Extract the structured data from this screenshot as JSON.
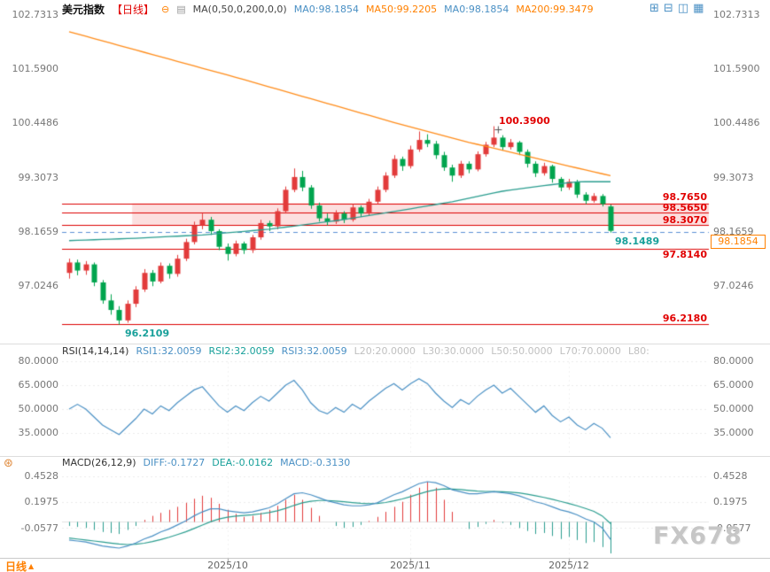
{
  "colors": {
    "up": "#e23b3b",
    "down": "#00a44e",
    "ma50": "#2a9d8f",
    "ma200": "#ff8c1a",
    "level_line": "#dd0000",
    "band_fill": "rgba(240,110,110,0.22)",
    "dashed_line": "#5b8fd4",
    "rsi_line": "#4a90c4",
    "diff_line": "#4a90c4",
    "dea_line": "#2a9d8f",
    "hist_pos": "#e23b3b",
    "hist_neg": "#2a9d8f",
    "accent_orange": "#ff8000",
    "accent_blue": "#4a90c4",
    "accent_red": "#e10000",
    "accent_teal": "#18a09a",
    "axis_text": "#777777",
    "muted_text": "#c0c0c0"
  },
  "header": {
    "title": "美元指数",
    "period": "【日线】",
    "ma_settings": "MA(0,50,0,200,0,0)",
    "ma_values": [
      "MA0:98.1854",
      "MA50:99.2205",
      "MA0:98.1854",
      "MA200:99.3479"
    ]
  },
  "icons": {
    "collapse": "⊖",
    "settings": "▤",
    "indicator": "⊛",
    "chevron_up": "▲"
  },
  "toolbar": {
    "icons": [
      {
        "name": "layout-single",
        "glyph": "⊞"
      },
      {
        "name": "layout-split-2",
        "glyph": "⊟"
      },
      {
        "name": "layout-split-vertical",
        "glyph": "◫"
      },
      {
        "name": "layout-grid",
        "glyph": "▦"
      }
    ]
  },
  "axis": {
    "main_ticks": [
      "102.7313",
      "101.5900",
      "100.4486",
      "99.3073",
      "98.1659",
      "97.0246"
    ],
    "rsi_ticks": [
      "80.0000",
      "65.0000",
      "50.0000",
      "35.0000"
    ],
    "macd_ticks": [
      "0.4528",
      "0.1975",
      "-0.0577"
    ],
    "x_labels": [
      "2025/10",
      "2025/11",
      "2025/12"
    ]
  },
  "levels": {
    "labels": [
      "98.7650",
      "98.5650",
      "98.3070",
      "97.8140",
      "96.2180"
    ]
  },
  "badges": {
    "current_price": "98.1854"
  },
  "annotations": {
    "high": "100.3900",
    "low": "96.2109",
    "last_low": "98.1489"
  },
  "rsi_header": {
    "title": "RSI(14,14,14)",
    "rsi1": "RSI1:32.0059",
    "rsi2": "RSI2:32.0059",
    "rsi3": "RSI3:32.0059",
    "l20": "L20:20.0000",
    "l30": "L30:30.0000",
    "l50": "L50:50.0000",
    "l70": "L70:70.0000",
    "l80": "L80:"
  },
  "macd_header": {
    "title": "MACD(26,12,9)",
    "diff": "DIFF:-0.1727",
    "dea": "DEA:-0.0162",
    "macd": "MACD:-0.3130"
  },
  "footer": {
    "period_button": "日线"
  },
  "watermark": "FX678",
  "chart_data": {
    "type": "candlestick",
    "title": "美元指数 日线",
    "x_month_ticks": [
      {
        "label": "2025/10",
        "index": 19
      },
      {
        "label": "2025/11",
        "index": 41
      },
      {
        "label": "2025/12",
        "index": 60
      }
    ],
    "main": {
      "y_ticks": [
        102.7313,
        101.59,
        100.4486,
        99.3073,
        98.1659,
        97.0246
      ],
      "ylim": [
        95.85,
        102.86
      ],
      "candles": [
        [
          97.3,
          97.6,
          97.18,
          97.52
        ],
        [
          97.52,
          97.58,
          97.25,
          97.35
        ],
        [
          97.35,
          97.55,
          97.26,
          97.48
        ],
        [
          97.48,
          97.52,
          97.02,
          97.1
        ],
        [
          97.1,
          97.15,
          96.65,
          96.72
        ],
        [
          96.72,
          96.85,
          96.42,
          96.52
        ],
        [
          96.52,
          96.6,
          96.211,
          96.3
        ],
        [
          96.3,
          96.72,
          96.25,
          96.65
        ],
        [
          96.65,
          97.02,
          96.58,
          96.95
        ],
        [
          96.95,
          97.38,
          96.9,
          97.3
        ],
        [
          97.3,
          97.36,
          97.02,
          97.12
        ],
        [
          97.12,
          97.52,
          97.08,
          97.45
        ],
        [
          97.45,
          97.5,
          97.18,
          97.28
        ],
        [
          97.28,
          97.68,
          97.22,
          97.6
        ],
        [
          97.6,
          98.02,
          97.55,
          97.95
        ],
        [
          97.95,
          98.38,
          97.9,
          98.3
        ],
        [
          98.3,
          98.55,
          98.22,
          98.42
        ],
        [
          98.42,
          98.48,
          98.1,
          98.18
        ],
        [
          98.18,
          98.22,
          97.78,
          97.85
        ],
        [
          97.85,
          97.92,
          97.56,
          97.7
        ],
        [
          97.7,
          97.98,
          97.65,
          97.92
        ],
        [
          97.92,
          97.96,
          97.7,
          97.78
        ],
        [
          97.78,
          98.1,
          97.72,
          98.05
        ],
        [
          98.05,
          98.42,
          98.0,
          98.35
        ],
        [
          98.35,
          98.4,
          98.18,
          98.28
        ],
        [
          98.28,
          98.66,
          98.22,
          98.6
        ],
        [
          98.6,
          99.12,
          98.55,
          99.05
        ],
        [
          99.05,
          99.5,
          99.0,
          99.32
        ],
        [
          99.32,
          99.45,
          99.02,
          99.1
        ],
        [
          99.1,
          99.15,
          98.65,
          98.72
        ],
        [
          98.72,
          98.78,
          98.38,
          98.45
        ],
        [
          98.45,
          98.55,
          98.3,
          98.38
        ],
        [
          98.38,
          98.62,
          98.33,
          98.55
        ],
        [
          98.55,
          98.6,
          98.35,
          98.42
        ],
        [
          98.42,
          98.75,
          98.38,
          98.68
        ],
        [
          98.68,
          98.72,
          98.48,
          98.55
        ],
        [
          98.55,
          98.86,
          98.5,
          98.8
        ],
        [
          98.8,
          99.12,
          98.75,
          99.05
        ],
        [
          99.05,
          99.42,
          99.0,
          99.35
        ],
        [
          99.35,
          99.78,
          99.3,
          99.7
        ],
        [
          99.7,
          99.75,
          99.45,
          99.55
        ],
        [
          99.55,
          99.98,
          99.5,
          99.9
        ],
        [
          99.9,
          100.28,
          99.85,
          100.1
        ],
        [
          100.1,
          100.22,
          99.95,
          100.02
        ],
        [
          100.02,
          100.08,
          99.7,
          99.78
        ],
        [
          99.78,
          99.85,
          99.45,
          99.52
        ],
        [
          99.52,
          99.58,
          99.22,
          99.35
        ],
        [
          99.35,
          99.66,
          99.3,
          99.6
        ],
        [
          99.6,
          99.65,
          99.4,
          99.48
        ],
        [
          99.48,
          99.86,
          99.44,
          99.8
        ],
        [
          99.8,
          100.06,
          99.75,
          100.0
        ],
        [
          100.0,
          100.39,
          99.95,
          100.15
        ],
        [
          100.15,
          100.2,
          99.88,
          99.95
        ],
        [
          99.95,
          100.12,
          99.9,
          100.05
        ],
        [
          100.05,
          100.08,
          99.78,
          99.85
        ],
        [
          99.85,
          99.9,
          99.52,
          99.6
        ],
        [
          99.6,
          99.65,
          99.32,
          99.4
        ],
        [
          99.4,
          99.62,
          99.35,
          99.55
        ],
        [
          99.55,
          99.58,
          99.2,
          99.28
        ],
        [
          99.28,
          99.32,
          99.02,
          99.1
        ],
        [
          99.1,
          99.28,
          99.05,
          99.22
        ],
        [
          99.22,
          99.26,
          98.88,
          98.95
        ],
        [
          98.95,
          99.0,
          98.75,
          98.82
        ],
        [
          98.82,
          98.98,
          98.78,
          98.92
        ],
        [
          98.92,
          98.96,
          98.7,
          98.75
        ],
        [
          98.7,
          98.74,
          98.1489,
          98.1854
        ]
      ],
      "ma50_points": [
        [
          0,
          97.98
        ],
        [
          8,
          98.03
        ],
        [
          16,
          98.1
        ],
        [
          24,
          98.22
        ],
        [
          32,
          98.4
        ],
        [
          40,
          98.62
        ],
        [
          46,
          98.8
        ],
        [
          52,
          99.02
        ],
        [
          57,
          99.14
        ],
        [
          61,
          99.22
        ],
        [
          65,
          99.2205
        ]
      ],
      "ma200_points": [
        [
          0,
          102.38
        ],
        [
          10,
          101.9
        ],
        [
          20,
          101.42
        ],
        [
          30,
          100.92
        ],
        [
          40,
          100.42
        ],
        [
          48,
          100.05
        ],
        [
          55,
          99.76
        ],
        [
          60,
          99.55
        ],
        [
          65,
          99.3479
        ]
      ],
      "level_lines": [
        98.765,
        98.565,
        98.307,
        97.814,
        96.218
      ],
      "band": {
        "top": 98.765,
        "bottom": 98.307,
        "start_index": 8
      },
      "dashed_line": 98.1659,
      "current_price": 98.1854,
      "high_marker": {
        "index": 51,
        "value": 100.39
      },
      "low_marker": {
        "index": 6,
        "value": 96.2109
      },
      "last_low": {
        "index": 65,
        "value": 98.1489
      },
      "ma_final": {
        "ma0": 98.1854,
        "ma50": 99.2205,
        "ma200": 99.3479
      }
    },
    "rsi": {
      "y_ticks": [
        80,
        65,
        50,
        35
      ],
      "levels": [
        20,
        30,
        50,
        70,
        80
      ],
      "final": 32.0059,
      "values": [
        50,
        53,
        50,
        45,
        40,
        37,
        34,
        39,
        44,
        50,
        47,
        52,
        49,
        54,
        58,
        62,
        64,
        58,
        52,
        48,
        52,
        49,
        54,
        58,
        55,
        60,
        65,
        68,
        62,
        54,
        49,
        47,
        51,
        48,
        53,
        50,
        55,
        59,
        63,
        66,
        62,
        66,
        69,
        66,
        60,
        55,
        51,
        56,
        53,
        58,
        62,
        65,
        60,
        63,
        58,
        53,
        48,
        52,
        46,
        42,
        45,
        40,
        37,
        41,
        38,
        32.0059
      ]
    },
    "macd": {
      "y_ticks": [
        0.4528,
        0.1975,
        -0.0577
      ],
      "final": {
        "diff": -0.1727,
        "dea": -0.0162,
        "macd": -0.313
      },
      "diff": [
        -0.18,
        -0.19,
        -0.2,
        -0.22,
        -0.24,
        -0.25,
        -0.26,
        -0.24,
        -0.21,
        -0.17,
        -0.14,
        -0.1,
        -0.07,
        -0.03,
        0.01,
        0.06,
        0.1,
        0.13,
        0.13,
        0.11,
        0.1,
        0.09,
        0.1,
        0.12,
        0.14,
        0.18,
        0.23,
        0.28,
        0.29,
        0.27,
        0.24,
        0.21,
        0.19,
        0.17,
        0.16,
        0.16,
        0.17,
        0.19,
        0.23,
        0.27,
        0.3,
        0.34,
        0.38,
        0.4,
        0.39,
        0.36,
        0.32,
        0.3,
        0.28,
        0.28,
        0.29,
        0.3,
        0.29,
        0.28,
        0.26,
        0.23,
        0.2,
        0.18,
        0.15,
        0.12,
        0.1,
        0.07,
        0.03,
        0.0,
        -0.06,
        -0.1727
      ],
      "dea": [
        -0.16,
        -0.17,
        -0.18,
        -0.19,
        -0.2,
        -0.21,
        -0.22,
        -0.225,
        -0.222,
        -0.212,
        -0.196,
        -0.175,
        -0.152,
        -0.126,
        -0.098,
        -0.065,
        -0.031,
        0.003,
        0.029,
        0.046,
        0.057,
        0.064,
        0.071,
        0.081,
        0.093,
        0.111,
        0.135,
        0.164,
        0.19,
        0.206,
        0.213,
        0.213,
        0.208,
        0.2,
        0.192,
        0.185,
        0.182,
        0.184,
        0.193,
        0.209,
        0.228,
        0.251,
        0.278,
        0.302,
        0.32,
        0.328,
        0.327,
        0.321,
        0.313,
        0.306,
        0.303,
        0.302,
        0.299,
        0.295,
        0.288,
        0.276,
        0.261,
        0.244,
        0.225,
        0.204,
        0.183,
        0.16,
        0.134,
        0.105,
        0.06,
        -0.0162
      ],
      "hist": [
        -0.04,
        -0.05,
        -0.06,
        -0.08,
        -0.1,
        -0.11,
        -0.12,
        -0.08,
        -0.04,
        0.02,
        0.06,
        0.09,
        0.12,
        0.15,
        0.19,
        0.23,
        0.26,
        0.24,
        0.18,
        0.12,
        0.08,
        0.05,
        0.06,
        0.09,
        0.12,
        0.16,
        0.22,
        0.27,
        0.22,
        0.14,
        0.06,
        0.0,
        -0.04,
        -0.06,
        -0.05,
        -0.03,
        0.01,
        0.05,
        0.1,
        0.15,
        0.2,
        0.27,
        0.34,
        0.4,
        0.34,
        0.22,
        0.1,
        0.0,
        -0.07,
        -0.05,
        -0.02,
        0.02,
        -0.01,
        -0.03,
        -0.06,
        -0.09,
        -0.12,
        -0.11,
        -0.14,
        -0.17,
        -0.15,
        -0.18,
        -0.21,
        -0.2,
        -0.25,
        -0.313
      ]
    }
  }
}
